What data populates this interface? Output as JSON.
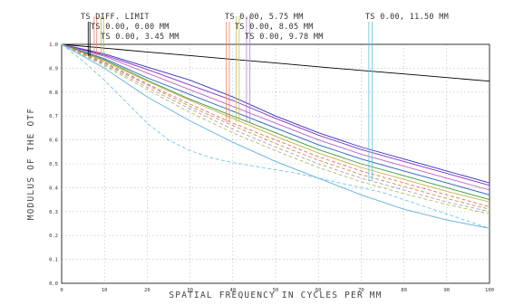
{
  "chart_data": {
    "type": "line",
    "title": "",
    "xlabel": "SPATIAL FREQUENCY IN CYCLES PER MM",
    "ylabel": "MODULUS OF THE OTF",
    "xlim": [
      0,
      100
    ],
    "ylim": [
      0,
      1.0
    ],
    "x_ticks": [
      "0",
      "10",
      "20",
      "30",
      "40",
      "50",
      "60",
      "70",
      "80",
      "90",
      "100"
    ],
    "y_ticks": [
      "0.0",
      "0.1",
      "0.2",
      "0.3",
      "0.4",
      "0.5",
      "0.6",
      "0.7",
      "0.8",
      "0.9",
      "1.0"
    ],
    "grid": true,
    "legend_entries": [
      {
        "label": "TS DIFF. LIMIT",
        "marker_x": [
          6.2,
          6.6
        ],
        "marker_color": "#000000"
      },
      {
        "label": "TS 0.00, 0.00 MM",
        "marker_x": [
          7.6,
          8.2
        ],
        "marker_color": "#f08080"
      },
      {
        "label": "TS 0.00, 3.45 MM",
        "marker_x": [
          9.2,
          9.8
        ],
        "marker_color": "#c9b030"
      },
      {
        "label": "TS 0.00, 5.75 MM",
        "marker_x": [
          38.5,
          39.2
        ],
        "marker_color": "#f08060"
      },
      {
        "label": "TS 0.00, 8.05 MM",
        "marker_x": [
          40.8,
          41.5
        ],
        "marker_color": "#c0c060"
      },
      {
        "label": "TS 0.00, 9.78 MM",
        "marker_x": [
          43.2,
          44.0
        ],
        "marker_color": "#b080d0"
      },
      {
        "label": "TS 0.00, 11.50 MM",
        "marker_x": [
          71.8,
          72.6
        ],
        "marker_color": "#60c0e0"
      }
    ],
    "series": [
      {
        "color": "#000000",
        "dash": "solid",
        "x": [
          0,
          10,
          20,
          30,
          40,
          50,
          60,
          70,
          80,
          90,
          100
        ],
        "y": [
          1.0,
          0.984,
          0.968,
          0.953,
          0.937,
          0.922,
          0.906,
          0.891,
          0.876,
          0.861,
          0.846
        ]
      },
      {
        "color": "#3030c0",
        "dash": "solid",
        "x": [
          0,
          10,
          20,
          30,
          40,
          50,
          60,
          70,
          80,
          90,
          100
        ],
        "y": [
          1.0,
          0.96,
          0.905,
          0.85,
          0.78,
          0.7,
          0.63,
          0.57,
          0.52,
          0.47,
          0.42
        ]
      },
      {
        "color": "#8030c0",
        "dash": "solid",
        "x": [
          0,
          10,
          20,
          30,
          40,
          50,
          60,
          70,
          80,
          90,
          100
        ],
        "y": [
          1.0,
          0.955,
          0.895,
          0.83,
          0.765,
          0.69,
          0.62,
          0.56,
          0.51,
          0.46,
          0.41
        ]
      },
      {
        "color": "#c060c0",
        "dash": "solid",
        "x": [
          0,
          10,
          20,
          30,
          40,
          50,
          60,
          70,
          80,
          90,
          100
        ],
        "y": [
          1.0,
          0.95,
          0.88,
          0.81,
          0.74,
          0.67,
          0.6,
          0.54,
          0.49,
          0.44,
          0.39
        ]
      },
      {
        "color": "#2060c0",
        "dash": "solid",
        "x": [
          0,
          10,
          20,
          30,
          40,
          50,
          60,
          70,
          80,
          90,
          100
        ],
        "y": [
          1.0,
          0.94,
          0.86,
          0.79,
          0.72,
          0.65,
          0.58,
          0.52,
          0.47,
          0.42,
          0.37
        ]
      },
      {
        "color": "#3a9a3a",
        "dash": "solid",
        "x": [
          0,
          10,
          20,
          30,
          40,
          50,
          60,
          70,
          80,
          90,
          100
        ],
        "y": [
          1.0,
          0.935,
          0.85,
          0.77,
          0.7,
          0.63,
          0.56,
          0.5,
          0.45,
          0.4,
          0.35
        ]
      },
      {
        "color": "#c8b040",
        "dash": "solid",
        "x": [
          0,
          10,
          20,
          30,
          40,
          50,
          60,
          70,
          80,
          90,
          100
        ],
        "y": [
          1.0,
          0.93,
          0.845,
          0.765,
          0.69,
          0.615,
          0.545,
          0.485,
          0.435,
          0.385,
          0.34
        ]
      },
      {
        "color": "#e07070",
        "dash": "dashed",
        "x": [
          0,
          10,
          20,
          30,
          40,
          50,
          60,
          70,
          80,
          90,
          100
        ],
        "y": [
          1.0,
          0.925,
          0.835,
          0.75,
          0.67,
          0.6,
          0.53,
          0.47,
          0.42,
          0.37,
          0.32
        ]
      },
      {
        "color": "#d09040",
        "dash": "dashed",
        "x": [
          0,
          10,
          20,
          30,
          40,
          50,
          60,
          70,
          80,
          90,
          100
        ],
        "y": [
          1.0,
          0.92,
          0.83,
          0.74,
          0.66,
          0.585,
          0.515,
          0.455,
          0.405,
          0.355,
          0.31
        ]
      },
      {
        "color": "#a0a0c0",
        "dash": "dashed",
        "x": [
          0,
          10,
          20,
          30,
          40,
          50,
          60,
          70,
          80,
          90,
          100
        ],
        "y": [
          1.0,
          0.915,
          0.82,
          0.73,
          0.645,
          0.57,
          0.5,
          0.44,
          0.39,
          0.34,
          0.3
        ]
      },
      {
        "color": "#b0c060",
        "dash": "dashed",
        "x": [
          0,
          10,
          20,
          30,
          40,
          50,
          60,
          70,
          80,
          90,
          100
        ],
        "y": [
          1.0,
          0.91,
          0.81,
          0.715,
          0.63,
          0.555,
          0.485,
          0.425,
          0.375,
          0.33,
          0.29
        ]
      },
      {
        "color": "#60b0e0",
        "dash": "solid",
        "x": [
          0,
          10,
          20,
          30,
          40,
          50,
          60,
          70,
          80,
          90,
          100
        ],
        "y": [
          1.0,
          0.9,
          0.78,
          0.68,
          0.59,
          0.51,
          0.44,
          0.37,
          0.31,
          0.265,
          0.23
        ]
      },
      {
        "color": "#70c8e8",
        "dash": "dashed",
        "x": [
          0,
          5,
          10,
          15,
          20,
          25,
          30,
          35,
          40,
          45,
          50,
          55,
          60,
          65,
          70,
          75,
          80,
          85,
          90,
          95,
          100
        ],
        "y": [
          1.0,
          0.93,
          0.85,
          0.76,
          0.67,
          0.6,
          0.555,
          0.525,
          0.505,
          0.49,
          0.475,
          0.46,
          0.44,
          0.42,
          0.4,
          0.38,
          0.35,
          0.32,
          0.29,
          0.26,
          0.23
        ]
      }
    ]
  }
}
